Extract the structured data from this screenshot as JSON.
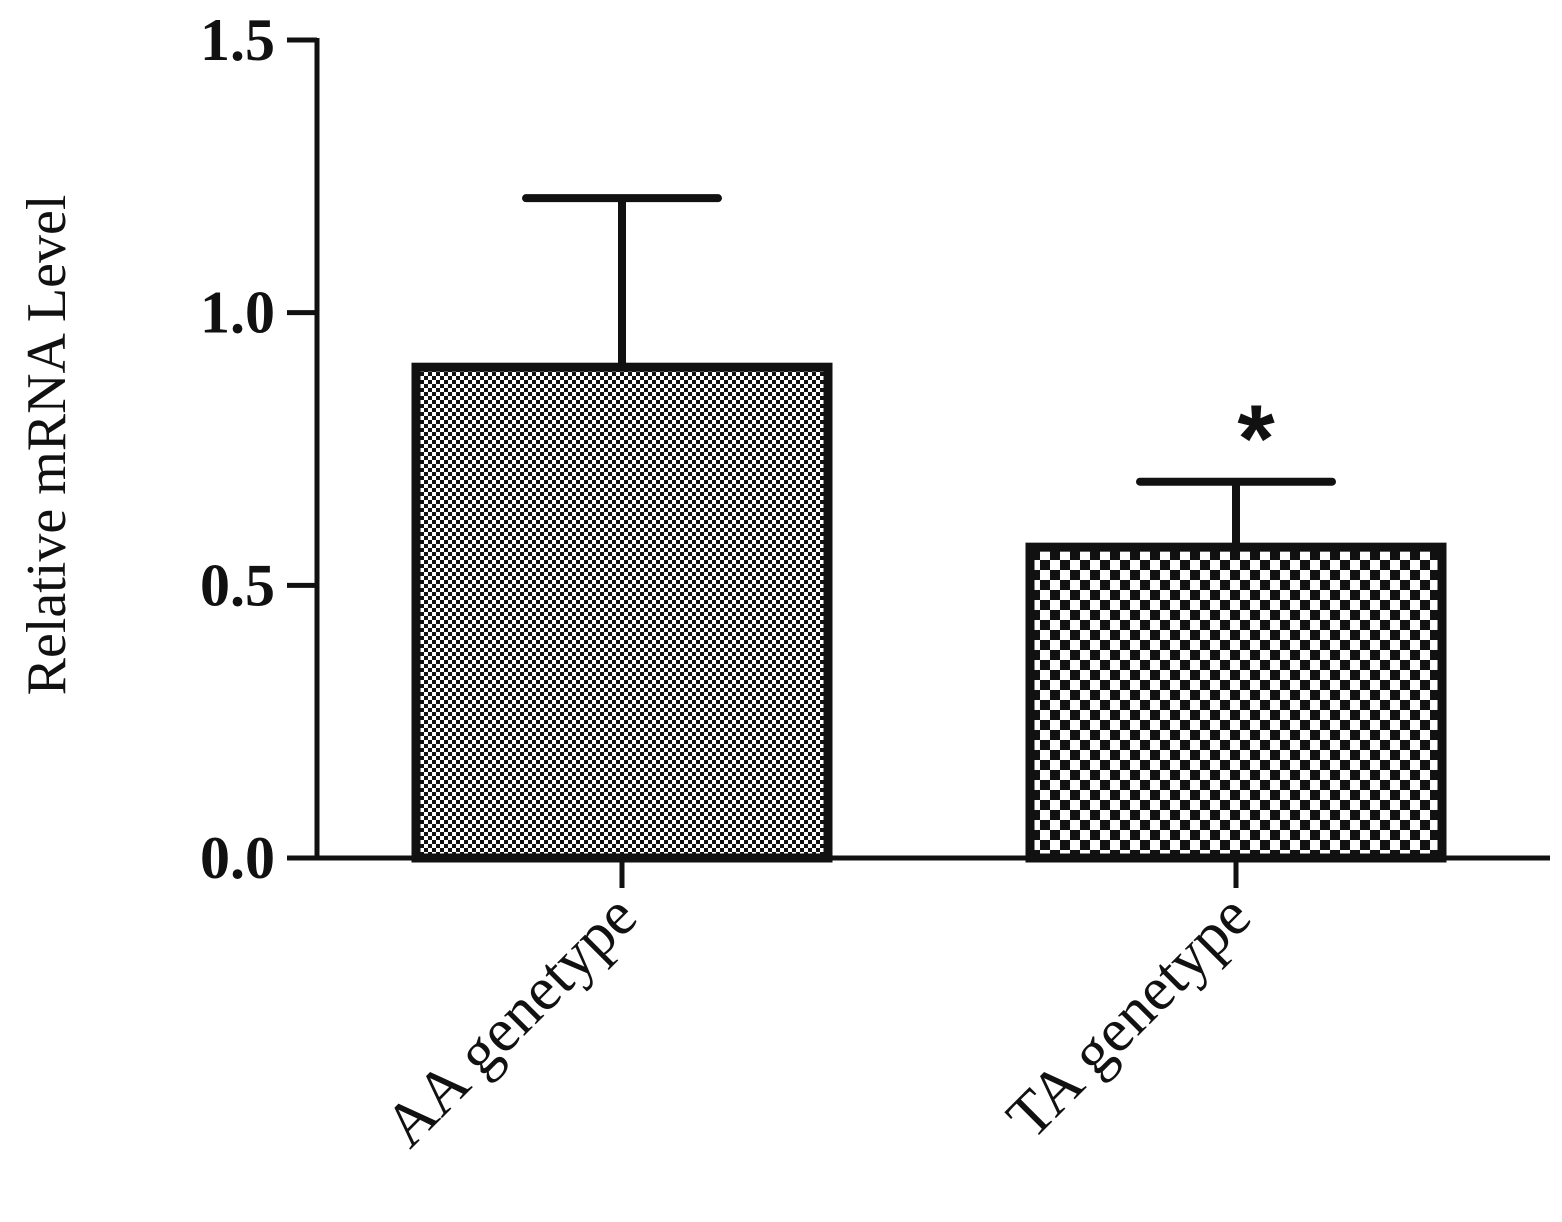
{
  "chart_data": {
    "type": "bar",
    "title": "",
    "xlabel": "",
    "ylabel": "Relative mRNA Level",
    "ylim": [
      0,
      1.5
    ],
    "yticks": [
      "0.0",
      "0.5",
      "1.0",
      "1.5"
    ],
    "categories": [
      "AA genetype",
      "TA genetype"
    ],
    "values": [
      0.9,
      0.57
    ],
    "error_upper": [
      1.21,
      0.69
    ],
    "patterns": [
      "fine-checker",
      "coarse-checker"
    ],
    "annotations": [
      {
        "category": "TA genetype",
        "text": "*"
      }
    ],
    "grid": false,
    "legend": "none",
    "colors": {
      "ink": "#111111",
      "fill": "#ffffff"
    }
  }
}
